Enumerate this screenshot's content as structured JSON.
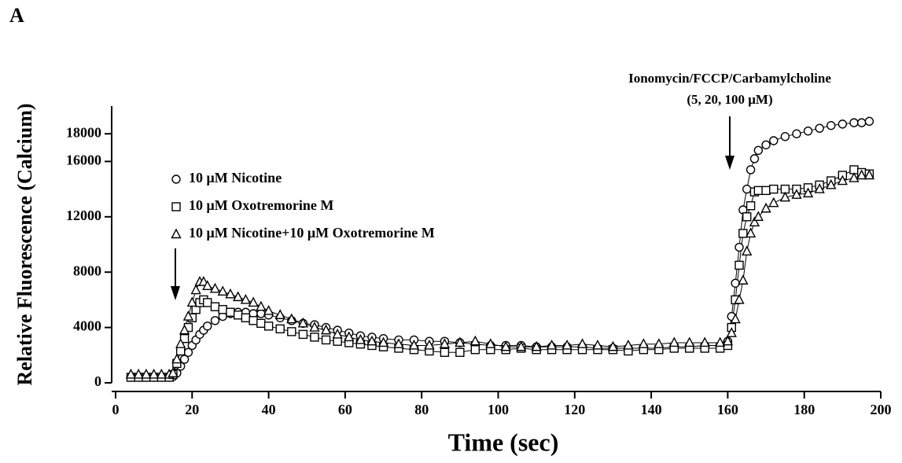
{
  "chart_data": {
    "type": "line",
    "panel_label": "A",
    "xlabel": "Time (sec)",
    "ylabel": "Relative Fluorescence (Calcium)",
    "annotation": [
      "Ionomycin/FCCP/Carbamylcholine",
      "(5, 20, 100 μM)"
    ],
    "xlim": [
      0,
      200
    ],
    "xticks": [
      0,
      20,
      40,
      60,
      80,
      100,
      120,
      140,
      160,
      180,
      200
    ],
    "ylim": [
      0,
      20000
    ],
    "yticks": [
      0,
      4000,
      8000,
      12000,
      16000,
      18000
    ],
    "x": [
      4,
      6,
      8,
      10,
      12,
      14,
      15,
      16,
      17,
      18,
      19,
      20,
      21,
      22,
      23,
      24,
      26,
      28,
      30,
      32,
      34,
      36,
      38,
      40,
      43,
      46,
      49,
      52,
      55,
      58,
      61,
      64,
      67,
      70,
      74,
      78,
      82,
      86,
      90,
      94,
      98,
      102,
      106,
      110,
      114,
      118,
      122,
      126,
      130,
      134,
      138,
      142,
      146,
      150,
      154,
      158,
      160,
      161,
      162,
      163,
      164,
      165,
      166,
      167,
      168,
      170,
      172,
      175,
      178,
      181,
      184,
      187,
      190,
      193,
      195,
      197
    ],
    "series": [
      {
        "name": "10 μM Nicotine",
        "marker": "circle",
        "color": "#000000",
        "values": [
          400,
          400,
          400,
          400,
          400,
          400,
          450,
          700,
          1200,
          1700,
          2200,
          2700,
          3100,
          3500,
          3800,
          4100,
          4500,
          4800,
          5000,
          5100,
          5100,
          5000,
          5000,
          4900,
          4700,
          4500,
          4300,
          4200,
          4000,
          3800,
          3600,
          3400,
          3300,
          3200,
          3100,
          3100,
          3000,
          3000,
          2900,
          2800,
          2700,
          2700,
          2700,
          2600,
          2600,
          2600,
          2600,
          2500,
          2500,
          2500,
          2500,
          2500,
          2600,
          2600,
          2700,
          2700,
          3000,
          4800,
          7200,
          9800,
          12500,
          14000,
          15400,
          16200,
          16800,
          17200,
          17500,
          17800,
          18000,
          18200,
          18400,
          18600,
          18700,
          18800,
          18800,
          18900
        ]
      },
      {
        "name": "10 μM Oxotremorine M",
        "marker": "square",
        "color": "#000000",
        "values": [
          400,
          400,
          400,
          400,
          400,
          400,
          600,
          1400,
          2300,
          3200,
          4000,
          4700,
          5300,
          5800,
          6000,
          5800,
          5500,
          5300,
          5100,
          4900,
          4700,
          4500,
          4300,
          4100,
          3900,
          3700,
          3500,
          3300,
          3100,
          3000,
          2900,
          2800,
          2700,
          2600,
          2500,
          2400,
          2300,
          2200,
          2200,
          2400,
          2400,
          2400,
          2500,
          2400,
          2400,
          2400,
          2400,
          2400,
          2400,
          2300,
          2400,
          2400,
          2500,
          2500,
          2500,
          2500,
          2700,
          4000,
          6000,
          8500,
          10800,
          12000,
          12800,
          13800,
          13900,
          13900,
          14000,
          14000,
          14000,
          14100,
          14300,
          14600,
          15000,
          15400,
          15200,
          15100
        ]
      },
      {
        "name": "10 μM Nicotine+10 μM Oxotremorine M",
        "marker": "triangle",
        "color": "#000000",
        "values": [
          600,
          600,
          600,
          600,
          600,
          600,
          700,
          1700,
          2800,
          3800,
          4800,
          5800,
          6700,
          7300,
          7300,
          7000,
          6800,
          6600,
          6400,
          6200,
          6000,
          5800,
          5500,
          5200,
          4900,
          4600,
          4300,
          4000,
          3800,
          3500,
          3300,
          3100,
          3000,
          2900,
          2800,
          2700,
          2700,
          2800,
          2900,
          3000,
          2800,
          2600,
          2600,
          2600,
          2700,
          2700,
          2800,
          2700,
          2600,
          2700,
          2800,
          2800,
          2900,
          2900,
          2900,
          2900,
          3000,
          3600,
          4600,
          6000,
          7400,
          9500,
          10800,
          11600,
          12000,
          12600,
          13000,
          13400,
          13600,
          13700,
          14000,
          14300,
          14600,
          14800,
          15000,
          15000
        ]
      }
    ]
  }
}
